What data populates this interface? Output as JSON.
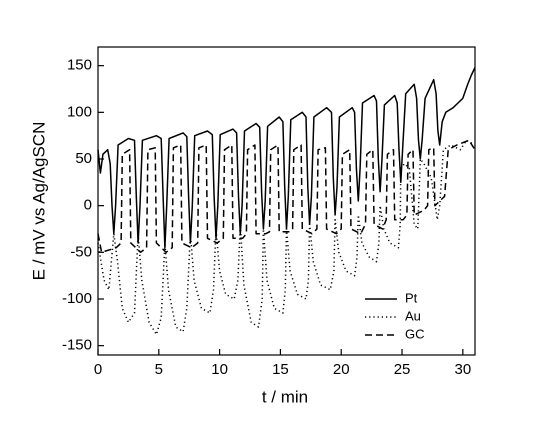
{
  "chart_data": {
    "type": "line",
    "x_label": "t / min",
    "y_label": "E / mV vs Ag/AgSCN",
    "xlim": [
      0,
      31
    ],
    "xticks": [
      0,
      5,
      10,
      15,
      20,
      25,
      30
    ],
    "ylim": [
      -160,
      170
    ],
    "yticks": [
      -150,
      -100,
      -50,
      0,
      50,
      100,
      150
    ],
    "legend": "lower right",
    "series": [
      {
        "name": "Pt",
        "color": "#000000",
        "style": "solid",
        "x": [
          0,
          0.2,
          0.4,
          0.8,
          1.0,
          1.15,
          1.3,
          1.45,
          1.65,
          2.5,
          3.0,
          3.15,
          3.3,
          3.45,
          3.65,
          4.8,
          5.2,
          5.35,
          5.5,
          5.65,
          5.85,
          7.0,
          7.3,
          7.45,
          7.6,
          7.75,
          7.95,
          9.0,
          9.4,
          9.55,
          9.7,
          9.85,
          10.05,
          11.1,
          11.4,
          11.55,
          11.7,
          11.85,
          12.05,
          13.0,
          13.3,
          13.45,
          13.6,
          13.75,
          13.95,
          14.9,
          15.2,
          15.35,
          15.5,
          15.65,
          15.85,
          16.8,
          17.1,
          17.25,
          17.4,
          17.55,
          17.75,
          18.8,
          19.2,
          19.35,
          19.5,
          19.65,
          19.85,
          20.9,
          21.1,
          21.25,
          21.4,
          21.55,
          21.75,
          22.7,
          22.9,
          23.05,
          23.2,
          23.35,
          23.55,
          24.4,
          24.6,
          24.75,
          24.9,
          25.05,
          25.3,
          26.0,
          26.2,
          26.35,
          26.5,
          26.65,
          26.9,
          27.6,
          27.8,
          27.95,
          28.1,
          28.3,
          28.6,
          29.2,
          29.6,
          30.0,
          30.4,
          30.7,
          31.0
        ],
        "values": [
          60,
          35,
          55,
          60,
          45,
          0,
          -30,
          0,
          65,
          72,
          70,
          10,
          -40,
          0,
          70,
          75,
          72,
          10,
          -45,
          0,
          72,
          78,
          74,
          10,
          -40,
          0,
          75,
          80,
          76,
          10,
          -35,
          0,
          76,
          82,
          78,
          10,
          -30,
          0,
          80,
          88,
          84,
          15,
          -25,
          5,
          85,
          95,
          90,
          20,
          -25,
          10,
          92,
          100,
          95,
          20,
          -20,
          10,
          95,
          105,
          100,
          30,
          -10,
          20,
          95,
          105,
          100,
          40,
          5,
          40,
          110,
          118,
          112,
          50,
          15,
          50,
          108,
          118,
          110,
          60,
          25,
          60,
          120,
          130,
          115,
          70,
          50,
          70,
          115,
          135,
          120,
          80,
          65,
          90,
          100,
          105,
          110,
          115,
          130,
          140,
          148
        ]
      },
      {
        "name": "Au",
        "color": "#000000",
        "style": "dotted",
        "x": [
          0,
          0.5,
          0.9,
          1.3,
          1.6,
          2.0,
          2.5,
          3.0,
          3.3,
          3.6,
          4.2,
          4.8,
          5.2,
          5.5,
          5.8,
          6.4,
          7.0,
          7.3,
          7.6,
          7.9,
          8.5,
          9.2,
          9.5,
          9.7,
          10.0,
          10.5,
          11.2,
          11.5,
          11.7,
          12.0,
          12.6,
          13.2,
          13.5,
          13.6,
          13.9,
          14.5,
          15.2,
          15.4,
          15.5,
          15.8,
          16.4,
          17.1,
          17.3,
          17.4,
          17.7,
          18.3,
          19.1,
          19.4,
          19.5,
          19.8,
          20.4,
          21.1,
          21.3,
          21.4,
          21.7,
          22.3,
          22.9,
          23.1,
          23.2,
          23.5,
          24.0,
          24.7,
          24.85,
          24.9,
          25.2,
          25.6,
          26.0,
          26.3,
          26.5,
          26.8,
          27.4,
          27.9,
          28.1,
          28.4,
          29.0,
          29.8,
          30.3,
          31.0
        ],
        "values": [
          -40,
          -80,
          -90,
          -30,
          -60,
          -110,
          -125,
          -115,
          -30,
          -80,
          -125,
          -138,
          -120,
          -40,
          -90,
          -130,
          -135,
          -110,
          -30,
          -80,
          -110,
          -115,
          -90,
          -25,
          -70,
          -95,
          -100,
          -80,
          -20,
          -85,
          -125,
          -130,
          -100,
          -25,
          -80,
          -110,
          -115,
          -90,
          -25,
          -70,
          -95,
          -100,
          -80,
          -20,
          -60,
          -85,
          -90,
          -70,
          -15,
          -50,
          -70,
          -75,
          -55,
          -10,
          -40,
          -55,
          -60,
          -40,
          0,
          -25,
          -40,
          -45,
          -20,
          40,
          45,
          40,
          -20,
          -25,
          50,
          45,
          30,
          -15,
          0,
          60,
          65,
          60,
          70,
          65
        ]
      },
      {
        "name": "GC",
        "color": "#000000",
        "style": "dashed",
        "x": [
          0,
          0.3,
          1.5,
          1.9,
          2.0,
          2.6,
          2.7,
          3.5,
          4.0,
          4.1,
          4.7,
          4.8,
          5.6,
          6.1,
          6.2,
          6.8,
          6.9,
          7.7,
          8.2,
          8.3,
          8.9,
          9.0,
          9.8,
          10.3,
          10.4,
          11.0,
          11.1,
          11.9,
          12.2,
          12.3,
          12.9,
          13.0,
          13.8,
          14.1,
          14.2,
          14.8,
          14.9,
          15.7,
          16.0,
          16.1,
          16.7,
          16.8,
          17.6,
          18.0,
          18.1,
          18.7,
          18.8,
          19.6,
          20.0,
          20.1,
          20.7,
          20.8,
          21.6,
          22.0,
          22.1,
          22.6,
          22.7,
          23.4,
          23.7,
          23.8,
          24.3,
          24.4,
          25.1,
          25.4,
          25.5,
          25.9,
          26.0,
          26.8,
          27.1,
          27.2,
          27.6,
          27.7,
          28.5,
          28.8,
          29.5,
          30.5,
          31.0
        ],
        "values": [
          -30,
          -50,
          -45,
          -40,
          55,
          60,
          -40,
          -50,
          -45,
          60,
          62,
          -40,
          -50,
          -45,
          62,
          65,
          -40,
          -45,
          -40,
          62,
          65,
          -35,
          -40,
          -35,
          60,
          65,
          -35,
          -35,
          -30,
          60,
          65,
          -30,
          -30,
          -28,
          60,
          65,
          -28,
          -28,
          -25,
          60,
          65,
          -25,
          -30,
          -25,
          60,
          62,
          -25,
          -30,
          -25,
          55,
          60,
          -25,
          -30,
          -20,
          55,
          60,
          -20,
          -25,
          -15,
          55,
          60,
          -15,
          -15,
          -10,
          55,
          60,
          -10,
          -5,
          0,
          60,
          62,
          0,
          10,
          60,
          65,
          70,
          60
        ]
      }
    ]
  }
}
